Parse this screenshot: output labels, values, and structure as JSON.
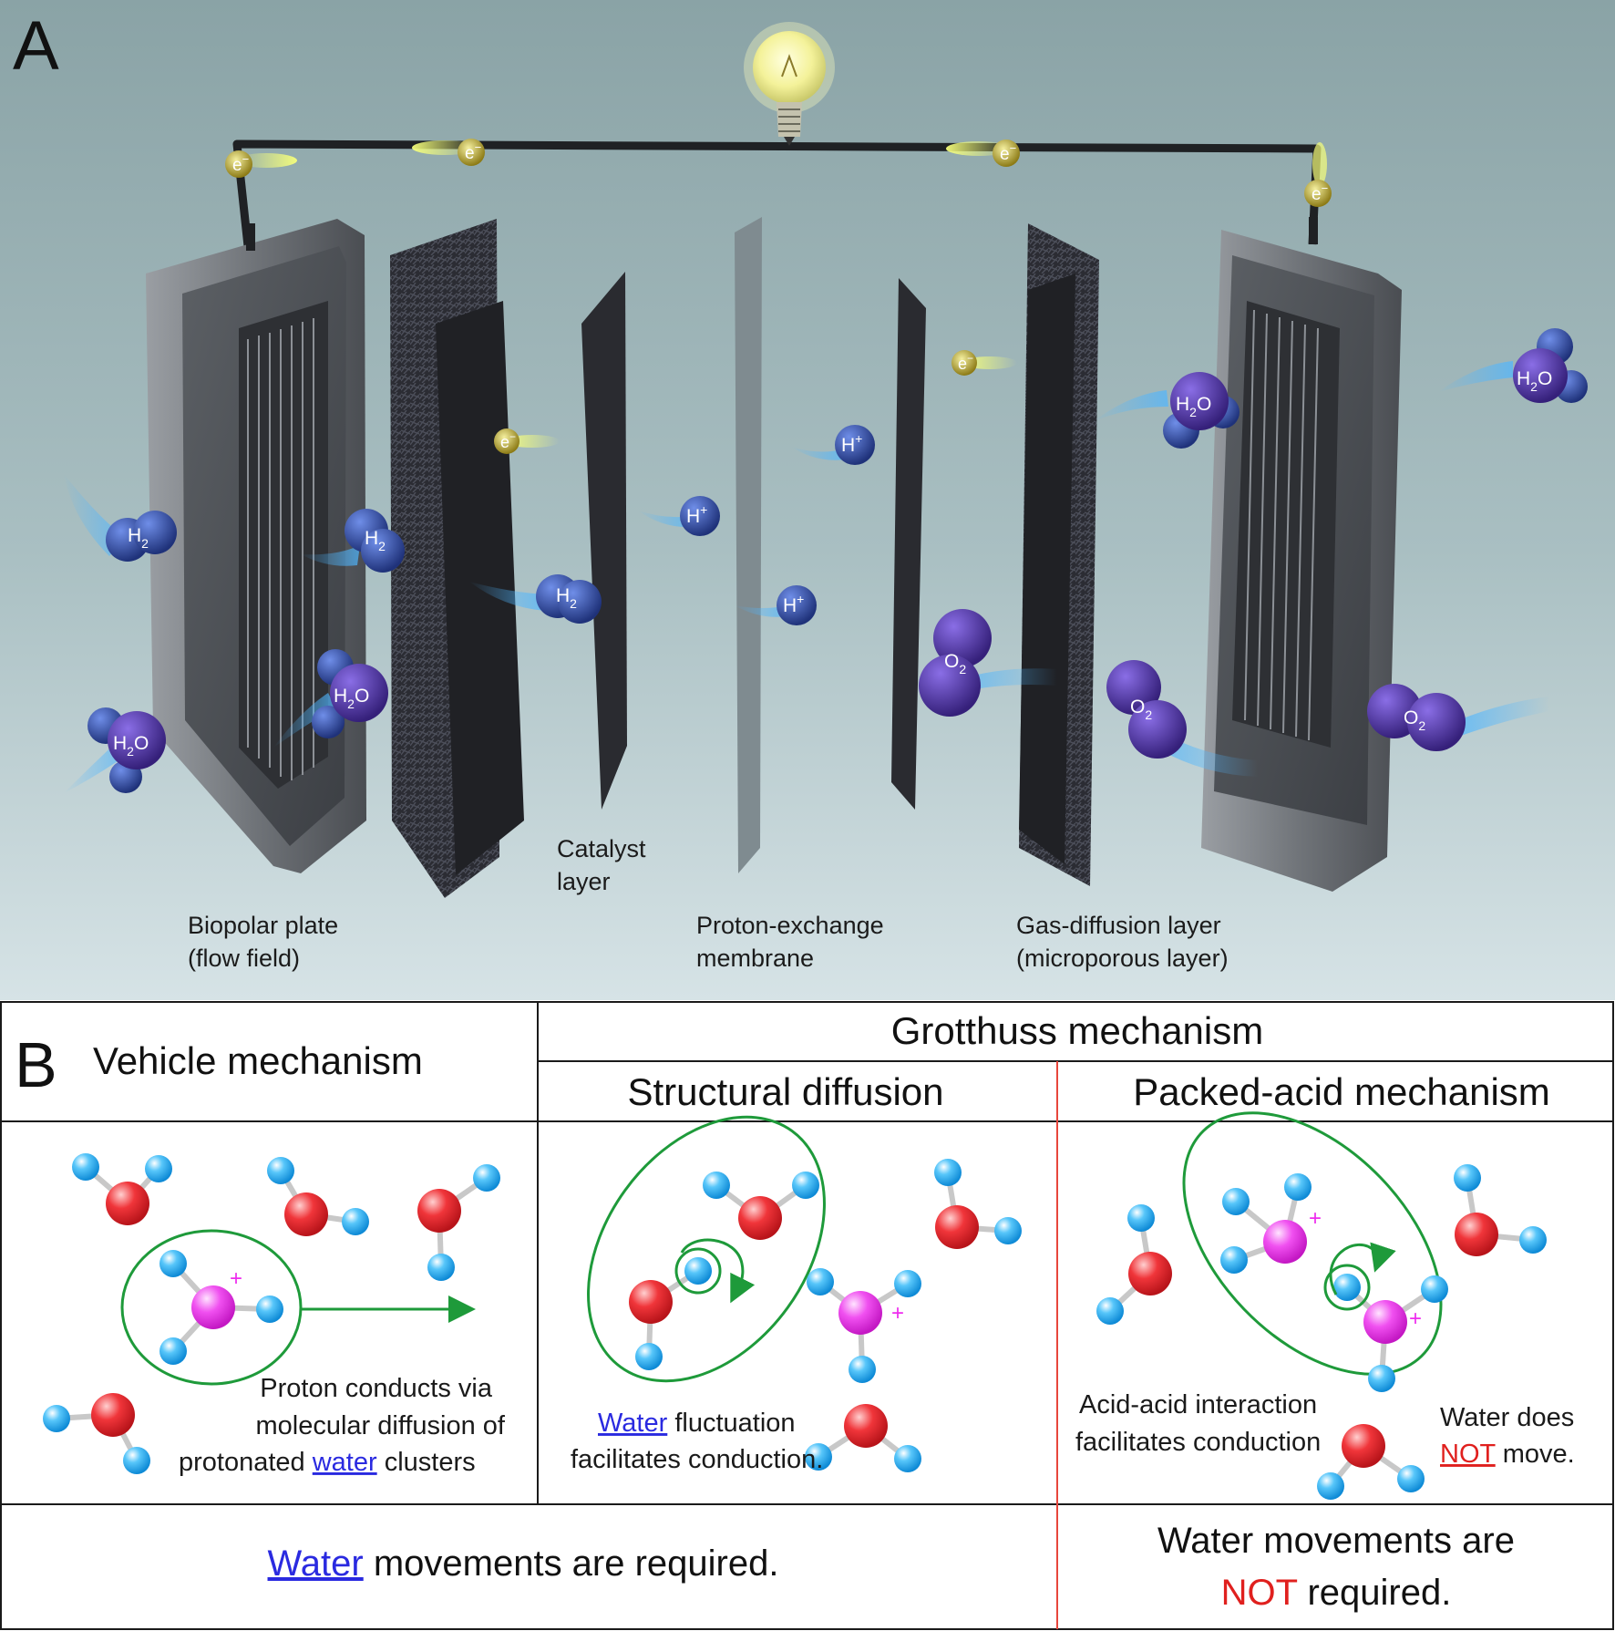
{
  "panel_a": {
    "letter": "A",
    "electron": "e",
    "electron_sup": "−",
    "labels": {
      "bipolar_1": "Biopolar plate",
      "bipolar_2": "(flow field)",
      "catalyst_1": "Catalyst",
      "catalyst_2": "layer",
      "pem_1": "Proton-exchange",
      "pem_2": "membrane",
      "gdl_1": "Gas-diffusion layer",
      "gdl_2": "(microporous layer)"
    },
    "molecules": {
      "h2": "H",
      "h2_sub": "2",
      "h2o_h": "H",
      "h2o_sub": "2",
      "h2o_o": "O",
      "o2": "O",
      "o2_sub": "2",
      "hplus": "H",
      "hplus_sup": "+"
    }
  },
  "panel_b": {
    "letter": "B",
    "vehicle_header": "Vehicle mechanism",
    "grotthuss_header": "Grotthuss mechanism",
    "structural_header": "Structural diffusion",
    "packed_header": "Packed-acid mechanism",
    "plus": "+",
    "vehicle_text": {
      "line1": "Proton conducts via",
      "line2": "molecular diffusion of",
      "line3_a": "protonated ",
      "line3_link": "water",
      "line3_b": " clusters"
    },
    "structural_text": {
      "line1_link": "Water",
      "line1_b": " fluctuation",
      "line2": "facilitates conduction."
    },
    "packed_text": {
      "line1": "Acid-acid interaction",
      "line2": "facilitates conduction",
      "right1": "Water does",
      "right2_red": "NOT",
      "right2_b": " move."
    },
    "footer_left": {
      "link": "Water",
      "rest": " movements are required."
    },
    "footer_right": {
      "line1": "Water movements are",
      "line2_red": "NOT",
      "line2_b": " required."
    }
  },
  "colors": {
    "water_link": "#2a2ae0",
    "not_red": "#e0201e",
    "oxygen": "#e4282c",
    "hydrogen": "#1aa3e8",
    "hydronium": "#ee2cee",
    "ellipse": "#1e9a3a",
    "divider_red": "#e8463c",
    "molecule_blue": "#3c5ab8",
    "molecule_purple": "#5a3fa8"
  }
}
